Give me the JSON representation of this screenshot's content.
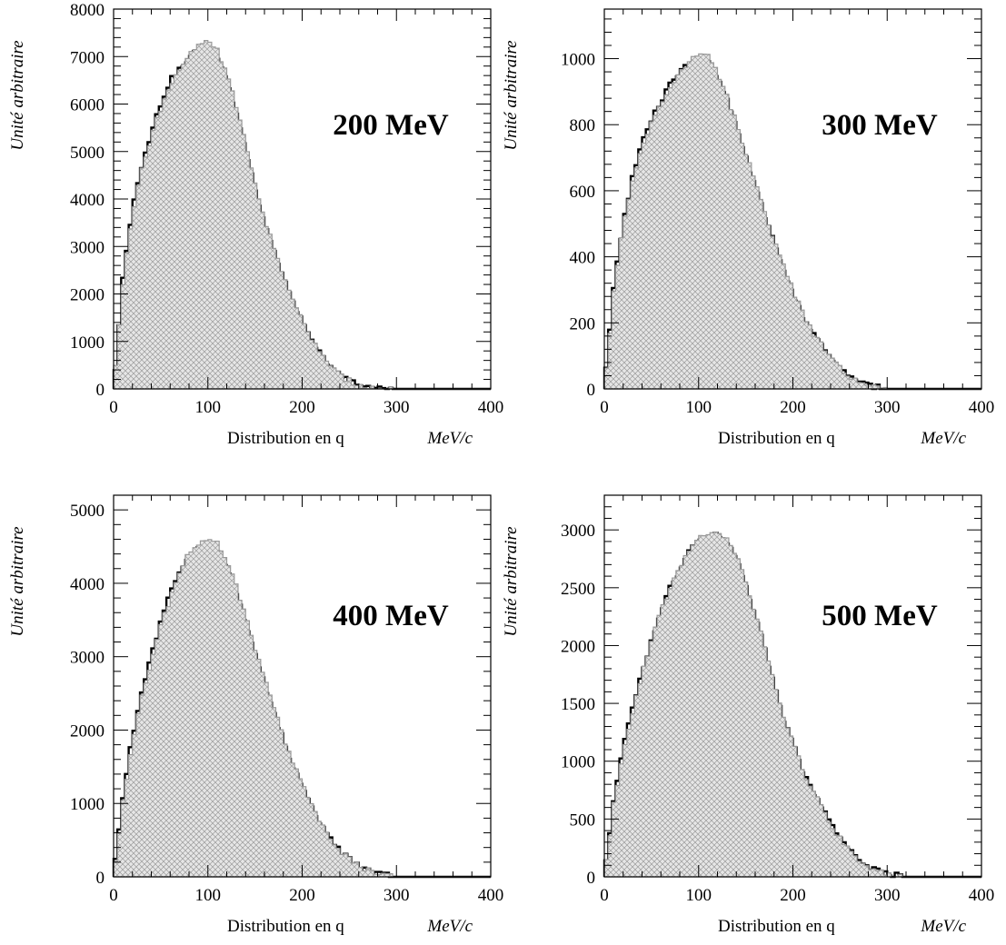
{
  "chart_data": [
    {
      "type": "bar",
      "annotation": "200 MeV",
      "xlabel": "Distribution en q",
      "xunit": "MeV/c",
      "ylabel": "Unité arbitraire",
      "xlim": [
        0,
        400
      ],
      "ylim": [
        0,
        8000
      ],
      "x_ticks": [
        0,
        100,
        200,
        300,
        400
      ],
      "y_ticks": [
        0,
        1000,
        2000,
        3000,
        4000,
        5000,
        6000,
        7000,
        8000
      ],
      "bin_width": 4,
      "x": [
        0,
        10,
        20,
        30,
        40,
        50,
        60,
        70,
        80,
        90,
        100,
        110,
        120,
        130,
        140,
        150,
        160,
        170,
        180,
        190,
        200,
        210,
        220,
        230,
        240,
        250,
        260,
        270,
        280,
        290,
        300,
        320,
        340,
        360,
        400
      ],
      "series": [
        {
          "name": "",
          "style": "black-outline",
          "values": [
            0,
            2300,
            3800,
            4700,
            5400,
            6000,
            6500,
            6700,
            7000,
            7100,
            7200,
            7000,
            6500,
            5800,
            5000,
            4200,
            3500,
            2900,
            2300,
            1800,
            1400,
            1000,
            700,
            450,
            280,
            160,
            80,
            40,
            15,
            5,
            0,
            0,
            0,
            0,
            0
          ]
        },
        {
          "name": "",
          "style": "grey-hatched",
          "values": [
            0,
            2200,
            3700,
            4600,
            5300,
            5900,
            6400,
            6700,
            7050,
            7200,
            7350,
            7150,
            6650,
            5950,
            5150,
            4350,
            3600,
            3000,
            2350,
            1850,
            1450,
            1050,
            720,
            470,
            290,
            170,
            85,
            40,
            15,
            5,
            0,
            0,
            0,
            0,
            0
          ]
        }
      ]
    },
    {
      "type": "bar",
      "annotation": "300 MeV",
      "xlabel": "Distribution en q",
      "xunit": "MeV/c",
      "ylabel": "Unité arbitraire",
      "xlim": [
        0,
        400
      ],
      "ylim": [
        0,
        1150
      ],
      "x_ticks": [
        0,
        100,
        200,
        300,
        400
      ],
      "y_ticks": [
        0,
        200,
        400,
        600,
        800,
        1000
      ],
      "bin_width": 4,
      "x": [
        0,
        10,
        20,
        30,
        40,
        50,
        60,
        70,
        80,
        90,
        100,
        110,
        120,
        130,
        140,
        150,
        160,
        170,
        180,
        190,
        200,
        210,
        220,
        230,
        240,
        250,
        260,
        270,
        280,
        290,
        300,
        320,
        340,
        360,
        400
      ],
      "series": [
        {
          "name": "",
          "style": "black-outline",
          "values": [
            0,
            300,
            500,
            640,
            740,
            810,
            870,
            920,
            960,
            980,
            1000,
            990,
            940,
            870,
            790,
            700,
            610,
            520,
            440,
            360,
            290,
            220,
            170,
            130,
            90,
            60,
            35,
            20,
            10,
            4,
            0,
            0,
            0,
            0,
            0
          ]
        },
        {
          "name": "",
          "style": "grey-hatched",
          "values": [
            0,
            290,
            490,
            630,
            730,
            800,
            860,
            915,
            960,
            990,
            1020,
            1005,
            955,
            885,
            805,
            715,
            625,
            535,
            450,
            370,
            300,
            230,
            175,
            135,
            92,
            62,
            36,
            20,
            10,
            4,
            0,
            0,
            0,
            0,
            0
          ]
        }
      ]
    },
    {
      "type": "bar",
      "annotation": "400 MeV",
      "xlabel": "Distribution en q",
      "xunit": "MeV/c",
      "ylabel": "Unité arbitraire",
      "xlim": [
        0,
        400
      ],
      "ylim": [
        0,
        5200
      ],
      "x_ticks": [
        0,
        100,
        200,
        300,
        400
      ],
      "y_ticks": [
        0,
        1000,
        2000,
        3000,
        4000,
        5000
      ],
      "bin_width": 4,
      "x": [
        0,
        10,
        20,
        30,
        40,
        50,
        60,
        70,
        80,
        90,
        100,
        110,
        120,
        130,
        140,
        150,
        160,
        170,
        180,
        190,
        200,
        210,
        220,
        230,
        240,
        250,
        260,
        270,
        280,
        290,
        300,
        320,
        340,
        360,
        400
      ],
      "series": [
        {
          "name": "",
          "style": "black-outline",
          "values": [
            0,
            1100,
            1900,
            2500,
            3000,
            3450,
            3850,
            4150,
            4350,
            4450,
            4500,
            4450,
            4200,
            3850,
            3450,
            3000,
            2600,
            2200,
            1850,
            1500,
            1200,
            950,
            700,
            500,
            350,
            230,
            140,
            80,
            40,
            15,
            0,
            0,
            0,
            0,
            0
          ]
        },
        {
          "name": "",
          "style": "grey-hatched",
          "values": [
            0,
            1050,
            1850,
            2450,
            2950,
            3400,
            3800,
            4150,
            4400,
            4550,
            4600,
            4550,
            4300,
            3950,
            3550,
            3100,
            2700,
            2300,
            1900,
            1550,
            1250,
            980,
            720,
            520,
            360,
            240,
            145,
            82,
            40,
            15,
            0,
            0,
            0,
            0,
            0
          ]
        }
      ]
    },
    {
      "type": "bar",
      "annotation": "500 MeV",
      "xlabel": "Distribution en q",
      "xunit": "MeV/c",
      "ylabel": "Unité arbitraire",
      "xlim": [
        0,
        400
      ],
      "ylim": [
        0,
        3300
      ],
      "x_ticks": [
        0,
        100,
        200,
        300,
        400
      ],
      "y_ticks": [
        0,
        500,
        1000,
        1500,
        2000,
        2500,
        3000
      ],
      "bin_width": 4,
      "x": [
        0,
        10,
        20,
        30,
        40,
        50,
        60,
        70,
        80,
        90,
        100,
        110,
        120,
        130,
        140,
        150,
        160,
        170,
        180,
        190,
        200,
        210,
        220,
        230,
        240,
        250,
        260,
        270,
        280,
        290,
        300,
        320,
        340,
        360,
        400
      ],
      "series": [
        {
          "name": "",
          "style": "black-outline",
          "values": [
            0,
            650,
            1100,
            1450,
            1750,
            2050,
            2300,
            2500,
            2650,
            2800,
            2900,
            2950,
            2950,
            2900,
            2750,
            2500,
            2250,
            1950,
            1650,
            1350,
            1150,
            900,
            750,
            600,
            450,
            330,
            230,
            150,
            90,
            50,
            20,
            0,
            0,
            0,
            0
          ]
        },
        {
          "name": "",
          "style": "grey-hatched",
          "values": [
            0,
            620,
            1080,
            1430,
            1740,
            2040,
            2290,
            2500,
            2670,
            2830,
            2930,
            2970,
            2980,
            2930,
            2790,
            2540,
            2290,
            1990,
            1690,
            1380,
            1170,
            920,
            760,
            610,
            455,
            335,
            232,
            152,
            90,
            50,
            20,
            0,
            0,
            0,
            0
          ]
        }
      ]
    }
  ]
}
